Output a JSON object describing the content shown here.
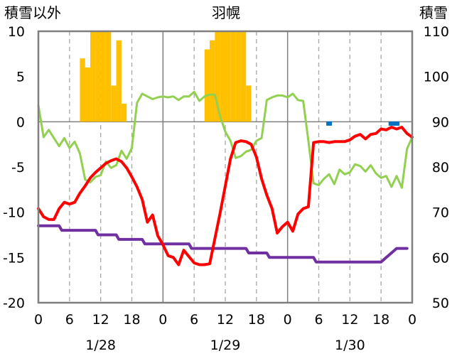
{
  "chart_data": {
    "type": "line",
    "title": "羽幌",
    "ylabel_left": "積雪以外",
    "ylabel_right": "積雪",
    "y_left": {
      "range": [
        -20,
        10
      ],
      "ticks": [
        "10",
        "5",
        "0",
        "-5",
        "-10",
        "-15",
        "-20"
      ]
    },
    "y_right": {
      "range": [
        50,
        110
      ],
      "ticks": [
        "110",
        "100",
        "90",
        "80",
        "70",
        "60",
        "50"
      ]
    },
    "x": {
      "range_hours": [
        0,
        72
      ],
      "tick_labels": [
        "0",
        "6",
        "12",
        "18",
        "0",
        "6",
        "12",
        "18",
        "0",
        "6",
        "12",
        "18",
        "0"
      ],
      "date_labels": [
        "1/28",
        "1/29",
        "1/30"
      ]
    },
    "grid": "dashed verticals at 6-hourly minor ticks, solid verticals at day boundaries",
    "colors": {
      "precip": "#ffc000",
      "temperature": "#ff0000",
      "humidity_line": "#92d050",
      "dew_line": "#7030a0",
      "snow_marks": "#0070c0"
    },
    "series": [
      {
        "key": "precip",
        "kind": "bar",
        "values": [
          [
            9,
            7
          ],
          [
            10,
            6
          ],
          [
            11,
            10
          ],
          [
            12,
            10
          ],
          [
            13,
            10
          ],
          [
            14,
            10
          ],
          [
            15,
            4
          ],
          [
            16,
            9
          ],
          [
            17,
            2
          ],
          [
            33,
            8
          ],
          [
            34,
            9
          ],
          [
            35,
            10
          ],
          [
            36,
            10
          ],
          [
            37,
            10
          ],
          [
            38,
            10
          ],
          [
            39,
            10
          ],
          [
            40,
            10
          ],
          [
            41,
            4
          ]
        ]
      },
      {
        "key": "temperature",
        "kind": "line",
        "values": [
          [
            0,
            -9.6
          ],
          [
            1,
            -10.5
          ],
          [
            2,
            -10.8
          ],
          [
            3,
            -10.8
          ],
          [
            4,
            -9.6
          ],
          [
            5,
            -8.9
          ],
          [
            6,
            -9.1
          ],
          [
            7,
            -8.9
          ],
          [
            8,
            -7.9
          ],
          [
            9,
            -7.1
          ],
          [
            10,
            -6.2
          ],
          [
            11,
            -5.6
          ],
          [
            12,
            -5.1
          ],
          [
            13,
            -4.6
          ],
          [
            14,
            -4.3
          ],
          [
            15,
            -4.1
          ],
          [
            16,
            -4.4
          ],
          [
            17,
            -5.1
          ],
          [
            18,
            -6.1
          ],
          [
            19,
            -7.2
          ],
          [
            20,
            -8.6
          ],
          [
            21,
            -11.1
          ],
          [
            22,
            -10.3
          ],
          [
            23,
            -12.6
          ],
          [
            24,
            -13.6
          ],
          [
            25,
            -14.8
          ],
          [
            26,
            -15.0
          ],
          [
            27,
            -15.8
          ],
          [
            28,
            -14.2
          ],
          [
            29,
            -14.9
          ],
          [
            30,
            -15.6
          ],
          [
            31,
            -15.8
          ],
          [
            32,
            -15.8
          ],
          [
            33,
            -15.7
          ],
          [
            34,
            -12.9
          ],
          [
            35,
            -10.1
          ],
          [
            36,
            -7.1
          ],
          [
            37,
            -4.1
          ],
          [
            38,
            -2.3
          ],
          [
            39,
            -2.1
          ],
          [
            40,
            -2.2
          ],
          [
            41,
            -2.5
          ],
          [
            42,
            -3.9
          ],
          [
            43,
            -6.3
          ],
          [
            44,
            -8.1
          ],
          [
            45,
            -9.6
          ],
          [
            46,
            -12.3
          ],
          [
            47,
            -11.6
          ],
          [
            48,
            -11.1
          ],
          [
            49,
            -12.1
          ],
          [
            50,
            -10.2
          ],
          [
            51,
            -9.6
          ],
          [
            52,
            -9.4
          ],
          [
            53,
            -2.3
          ],
          [
            54,
            -2.2
          ],
          [
            55,
            -2.2
          ],
          [
            56,
            -2.3
          ],
          [
            57,
            -2.2
          ],
          [
            58,
            -2.2
          ],
          [
            59,
            -2.2
          ],
          [
            60,
            -2.0
          ],
          [
            61,
            -1.6
          ],
          [
            62,
            -1.4
          ],
          [
            63,
            -1.9
          ],
          [
            64,
            -1.4
          ],
          [
            65,
            -1.3
          ],
          [
            66,
            -0.8
          ],
          [
            67,
            -0.9
          ],
          [
            68,
            -0.6
          ],
          [
            69,
            -0.8
          ],
          [
            70,
            -0.6
          ],
          [
            71,
            -1.3
          ],
          [
            72,
            -1.7
          ]
        ]
      },
      {
        "key": "humidity_line",
        "kind": "line",
        "values": [
          [
            0,
            1.8
          ],
          [
            1,
            -1.7
          ],
          [
            2,
            -0.9
          ],
          [
            3,
            -1.8
          ],
          [
            4,
            -2.7
          ],
          [
            5,
            -1.8
          ],
          [
            6,
            -2.9
          ],
          [
            7,
            -2.2
          ],
          [
            8,
            -3.5
          ],
          [
            9,
            -6.4
          ],
          [
            10,
            -6.7
          ],
          [
            11,
            -6.1
          ],
          [
            12,
            -5.9
          ],
          [
            13,
            -4.4
          ],
          [
            14,
            -5.1
          ],
          [
            15,
            -4.8
          ],
          [
            16,
            -3.2
          ],
          [
            17,
            -4.1
          ],
          [
            18,
            -2.9
          ],
          [
            19,
            2.1
          ],
          [
            20,
            3.1
          ],
          [
            21,
            2.8
          ],
          [
            22,
            2.5
          ],
          [
            23,
            2.7
          ],
          [
            24,
            2.8
          ],
          [
            25,
            2.7
          ],
          [
            26,
            2.8
          ],
          [
            27,
            2.4
          ],
          [
            28,
            2.8
          ],
          [
            29,
            2.8
          ],
          [
            30,
            3.3
          ],
          [
            31,
            2.3
          ],
          [
            32,
            2.8
          ],
          [
            33,
            3.0
          ],
          [
            34,
            3.0
          ],
          [
            35,
            0.6
          ],
          [
            36,
            -1.1
          ],
          [
            37,
            -2.1
          ],
          [
            38,
            -4.0
          ],
          [
            39,
            -3.8
          ],
          [
            40,
            -3.3
          ],
          [
            41,
            -3.1
          ],
          [
            42,
            -2.1
          ],
          [
            43,
            -1.8
          ],
          [
            44,
            2.4
          ],
          [
            45,
            2.7
          ],
          [
            46,
            2.9
          ],
          [
            47,
            2.9
          ],
          [
            48,
            2.7
          ],
          [
            49,
            3.1
          ],
          [
            50,
            2.4
          ],
          [
            51,
            2.3
          ],
          [
            52,
            -2.1
          ],
          [
            53,
            -6.8
          ],
          [
            54,
            -7.0
          ],
          [
            55,
            -6.3
          ],
          [
            56,
            -5.8
          ],
          [
            57,
            -6.9
          ],
          [
            58,
            -5.3
          ],
          [
            59,
            -5.8
          ],
          [
            60,
            -5.6
          ],
          [
            61,
            -4.7
          ],
          [
            62,
            -4.9
          ],
          [
            63,
            -5.5
          ],
          [
            64,
            -4.8
          ],
          [
            65,
            -5.7
          ],
          [
            66,
            -6.2
          ],
          [
            67,
            -6.0
          ],
          [
            68,
            -7.2
          ],
          [
            69,
            -6.0
          ],
          [
            70,
            -7.3
          ],
          [
            71,
            -3.0
          ],
          [
            72,
            -1.7
          ]
        ]
      },
      {
        "key": "dew_line",
        "kind": "line",
        "values": [
          [
            0,
            -11.5
          ],
          [
            4,
            -11.5
          ],
          [
            4.5,
            -12.0
          ],
          [
            11,
            -12.0
          ],
          [
            11.5,
            -12.5
          ],
          [
            15,
            -12.5
          ],
          [
            15.5,
            -13.0
          ],
          [
            20,
            -13.0
          ],
          [
            20.5,
            -13.5
          ],
          [
            29,
            -13.5
          ],
          [
            29.5,
            -14.0
          ],
          [
            40,
            -14.0
          ],
          [
            40.5,
            -14.5
          ],
          [
            44,
            -14.5
          ],
          [
            44.5,
            -15.0
          ],
          [
            53,
            -15.0
          ],
          [
            53.5,
            -15.5
          ],
          [
            66,
            -15.5
          ],
          [
            67,
            -15.0
          ],
          [
            68,
            -14.5
          ],
          [
            69,
            -14.0
          ],
          [
            71,
            -14.0
          ]
        ]
      },
      {
        "key": "snow_marks",
        "kind": "marks",
        "values": [
          [
            56,
            89.6
          ],
          [
            68,
            89.6
          ],
          [
            69,
            89.6
          ]
        ]
      }
    ]
  }
}
